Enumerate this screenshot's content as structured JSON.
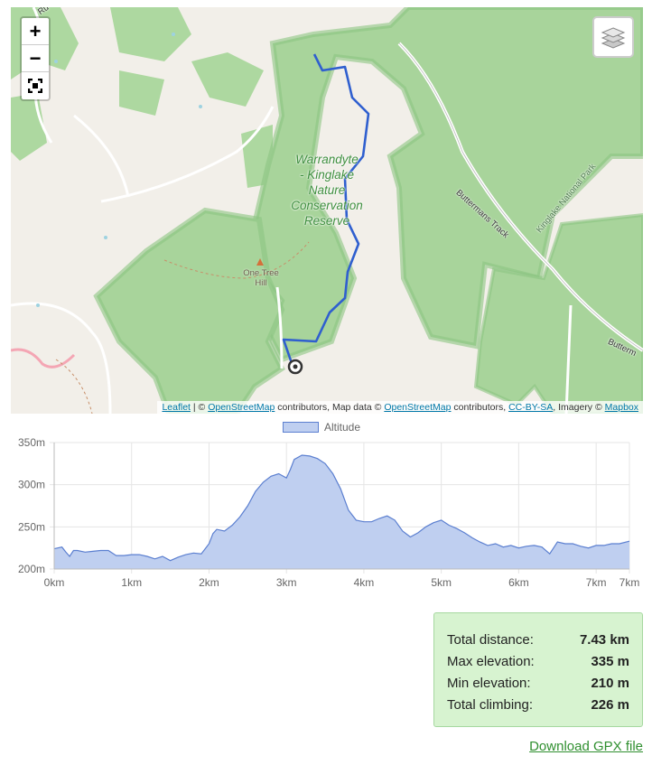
{
  "map": {
    "labels": {
      "reserve": [
        "Warrandyte",
        "- Kinglake",
        "Nature",
        "Conservation",
        "Reserve"
      ],
      "hill": [
        "One Tree",
        "Hill"
      ],
      "butterman_track": "Buttermans Track",
      "kinglake_park": "Kinglake National Park",
      "butterman_edge": "Butterm",
      "road_top": "Ru"
    },
    "controls": {
      "zoom_in": "+",
      "zoom_out": "−"
    },
    "attribution": {
      "leaflet": "Leaflet",
      "sep1": " | © ",
      "osm1": "OpenStreetMap",
      "mid1": " contributors, Map data © ",
      "osm2": "OpenStreetMap",
      "mid2": " contributors, ",
      "license": "CC-BY-SA",
      "mid3": ", Imagery © ",
      "mapbox": "Mapbox"
    },
    "colors": {
      "park": "#a8d49b",
      "park_border": "#7cbf72",
      "land": "#f2efe9",
      "route": "#2f5fcf"
    }
  },
  "chart_data": {
    "type": "area",
    "x": [
      0,
      0.1,
      0.15,
      0.2,
      0.25,
      0.3,
      0.4,
      0.5,
      0.6,
      0.7,
      0.8,
      0.9,
      1.0,
      1.1,
      1.2,
      1.3,
      1.4,
      1.5,
      1.6,
      1.7,
      1.8,
      1.9,
      2.0,
      2.05,
      2.1,
      2.2,
      2.3,
      2.4,
      2.5,
      2.6,
      2.7,
      2.8,
      2.9,
      3.0,
      3.05,
      3.1,
      3.2,
      3.3,
      3.4,
      3.5,
      3.6,
      3.7,
      3.8,
      3.9,
      4.0,
      4.1,
      4.2,
      4.3,
      4.4,
      4.5,
      4.6,
      4.7,
      4.8,
      4.9,
      5.0,
      5.1,
      5.2,
      5.3,
      5.4,
      5.5,
      5.6,
      5.7,
      5.8,
      5.9,
      6.0,
      6.1,
      6.2,
      6.3,
      6.4,
      6.5,
      6.6,
      6.7,
      6.8,
      6.9,
      7.0,
      7.1,
      7.2,
      7.3,
      7.43
    ],
    "series": [
      {
        "name": "Altitude",
        "values": [
          224,
          226,
          220,
          215,
          222,
          222,
          220,
          221,
          222,
          222,
          216,
          216,
          217,
          217,
          215,
          212,
          215,
          210,
          214,
          217,
          219,
          218,
          230,
          242,
          247,
          245,
          252,
          262,
          275,
          292,
          303,
          310,
          313,
          308,
          318,
          330,
          335,
          334,
          331,
          325,
          313,
          295,
          270,
          258,
          256,
          256,
          260,
          263,
          258,
          245,
          238,
          243,
          250,
          255,
          258,
          252,
          248,
          243,
          237,
          232,
          228,
          230,
          226,
          228,
          225,
          227,
          228,
          226,
          218,
          232,
          230,
          230,
          227,
          225,
          228,
          228,
          230,
          230,
          233
        ]
      }
    ],
    "xticks": [
      "0km",
      "1km",
      "2km",
      "3km",
      "4km",
      "5km",
      "6km",
      "7km",
      "7km"
    ],
    "xtick_values": [
      0,
      1,
      2,
      3,
      4,
      5,
      6,
      7,
      7.43
    ],
    "yticks": [
      "200m",
      "250m",
      "300m",
      "350m"
    ],
    "ytick_values": [
      200,
      250,
      300,
      350
    ],
    "ylim": [
      200,
      350
    ],
    "xlim": [
      0,
      7.43
    ],
    "title": "",
    "xlabel": "",
    "ylabel": "",
    "grid": true,
    "legend": "top-center",
    "fill_color": "#bfcff0",
    "line_color": "#5b7fd0"
  },
  "legend": {
    "label": "Altitude"
  },
  "stats": {
    "distance_label": "Total distance:",
    "distance_value": "7.43 km",
    "max_label": "Max elevation:",
    "max_value": "335 m",
    "min_label": "Min elevation:",
    "min_value": "210 m",
    "climb_label": "Total climbing:",
    "climb_value": "226 m"
  },
  "download": {
    "label": "Download GPX file"
  }
}
